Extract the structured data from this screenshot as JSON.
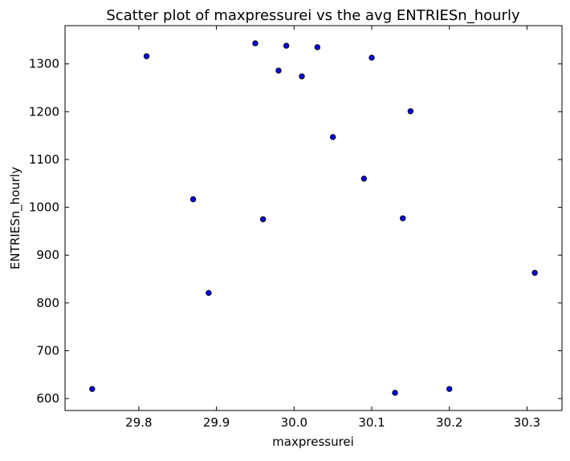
{
  "chart_data": {
    "type": "scatter",
    "title": "Scatter plot of maxpressurei vs the avg ENTRIESn_hourly",
    "xlabel": "maxpressurei",
    "ylabel": "ENTRIESn_hourly",
    "xlim": [
      29.705,
      30.345
    ],
    "ylim": [
      575,
      1380
    ],
    "xticks": [
      29.8,
      29.9,
      30.0,
      30.1,
      30.2,
      30.3
    ],
    "xtick_labels": [
      "29.8",
      "29.9",
      "30.0",
      "30.1",
      "30.2",
      "30.3"
    ],
    "yticks": [
      600,
      700,
      800,
      900,
      1000,
      1100,
      1200,
      1300
    ],
    "ytick_labels": [
      "600",
      "700",
      "800",
      "900",
      "1000",
      "1100",
      "1200",
      "1300"
    ],
    "grid": false,
    "marker_color": "#0000ff",
    "marker_edge_color": "#000000",
    "points": [
      {
        "x": 29.74,
        "y": 620
      },
      {
        "x": 29.81,
        "y": 1316
      },
      {
        "x": 29.87,
        "y": 1017
      },
      {
        "x": 29.89,
        "y": 821
      },
      {
        "x": 29.95,
        "y": 1343
      },
      {
        "x": 29.96,
        "y": 975
      },
      {
        "x": 29.98,
        "y": 1286
      },
      {
        "x": 29.99,
        "y": 1338
      },
      {
        "x": 30.01,
        "y": 1274
      },
      {
        "x": 30.03,
        "y": 1335
      },
      {
        "x": 30.05,
        "y": 1147
      },
      {
        "x": 30.09,
        "y": 1060
      },
      {
        "x": 30.1,
        "y": 1313
      },
      {
        "x": 30.13,
        "y": 612
      },
      {
        "x": 30.14,
        "y": 977
      },
      {
        "x": 30.15,
        "y": 1201
      },
      {
        "x": 30.2,
        "y": 620
      },
      {
        "x": 30.31,
        "y": 863
      }
    ]
  }
}
